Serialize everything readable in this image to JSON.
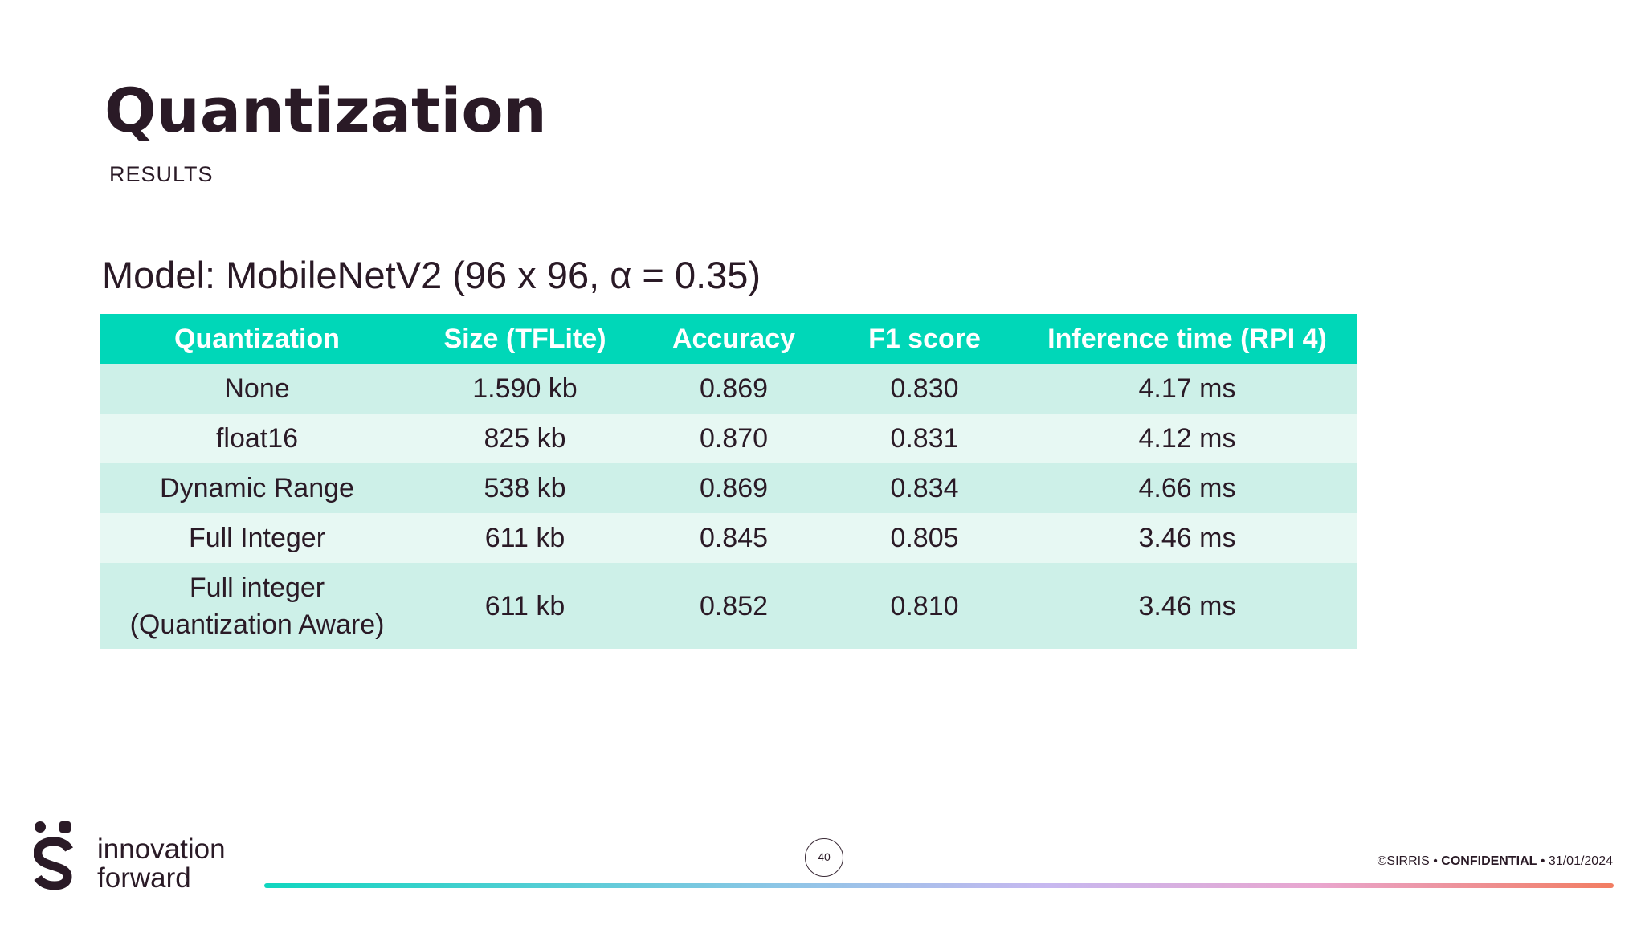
{
  "slide": {
    "title": "Quantization",
    "subtitle": "RESULTS",
    "model_heading": "Model: MobileNetV2 (96 x 96, α = 0.35)"
  },
  "table": {
    "headers": [
      "Quantization",
      "Size (TFLite)",
      "Accuracy",
      "F1 score",
      "Inference time (RPI 4)"
    ],
    "rows": [
      {
        "quantization": "None",
        "size": "1.590 kb",
        "accuracy": "0.869",
        "f1": "0.830",
        "inference": "4.17 ms"
      },
      {
        "quantization": "float16",
        "size": "825 kb",
        "accuracy": "0.870",
        "f1": "0.831",
        "inference": "4.12 ms"
      },
      {
        "quantization": "Dynamic Range",
        "size": "538 kb",
        "accuracy": "0.869",
        "f1": "0.834",
        "inference": "4.66 ms"
      },
      {
        "quantization": "Full Integer",
        "size": "611 kb",
        "accuracy": "0.845",
        "f1": "0.805",
        "inference": "3.46 ms"
      },
      {
        "quantization_line1": "Full integer",
        "quantization_line2": "(Quantization Aware)",
        "size": "611 kb",
        "accuracy": "0.852",
        "f1": "0.810",
        "inference": "3.46 ms"
      }
    ]
  },
  "footer": {
    "brand_line1": "innovation",
    "brand_line2": "forward",
    "page_number": "40",
    "copyright": "©SIRRIS",
    "bullet": "•",
    "confidential": "CONFIDENTIAL",
    "date": "31/01/2024"
  },
  "colors": {
    "header_bg": "#00d7b8",
    "row_dark": "#cdf0e8",
    "row_light": "#e7f8f3",
    "text": "#2a1a26"
  }
}
